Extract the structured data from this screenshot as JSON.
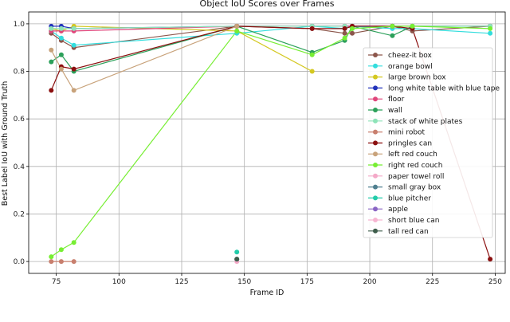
{
  "chart_data": {
    "type": "line",
    "title": "Object IoU Scores over Frames",
    "xlabel": "Frame ID",
    "ylabel": "Best Label IoU with Ground Truth",
    "xlim": [
      64,
      254
    ],
    "ylim": [
      -0.05,
      1.05
    ],
    "xticks": [
      75,
      100,
      125,
      150,
      175,
      200,
      225,
      250
    ],
    "yticks": [
      0.0,
      0.2,
      0.4,
      0.6,
      0.8,
      1.0
    ],
    "grid": true,
    "legend_position": "right",
    "series": [
      {
        "name": "cheez-it box",
        "color": "#8c564b",
        "points": [
          [
            73,
            0.96
          ],
          [
            77,
            0.93
          ],
          [
            82,
            0.9
          ],
          [
            147,
            0.99
          ],
          [
            177,
            0.98
          ],
          [
            190,
            0.96
          ],
          [
            193,
            0.96
          ],
          [
            209,
            0.99
          ],
          [
            217,
            0.97
          ],
          [
            248,
            0.99
          ]
        ]
      },
      {
        "name": "orange bowl",
        "color": "#33dddd",
        "points": [
          [
            73,
            0.97
          ],
          [
            77,
            0.94
          ],
          [
            82,
            0.91
          ],
          [
            147,
            0.96
          ],
          [
            177,
            0.99
          ],
          [
            190,
            0.98
          ],
          [
            193,
            0.99
          ],
          [
            209,
            0.98
          ],
          [
            217,
            0.98
          ],
          [
            248,
            0.96
          ]
        ]
      },
      {
        "name": "large brown box",
        "color": "#d4c820",
        "points": [
          [
            73,
            0.98
          ],
          [
            77,
            0.97
          ],
          [
            82,
            0.99
          ],
          [
            147,
            0.97
          ],
          [
            177,
            0.8
          ]
        ]
      },
      {
        "name": "long white table with blue tape",
        "color": "#2233bb",
        "points": [
          [
            73,
            0.99
          ],
          [
            77,
            0.99
          ],
          [
            82,
            0.98
          ],
          [
            147,
            0.99
          ],
          [
            177,
            0.99
          ],
          [
            190,
            0.99
          ],
          [
            193,
            0.99
          ],
          [
            209,
            0.99
          ],
          [
            217,
            0.99
          ],
          [
            248,
            0.99
          ]
        ]
      },
      {
        "name": "floor",
        "color": "#e0457b",
        "points": [
          [
            73,
            0.97
          ],
          [
            77,
            0.97
          ],
          [
            82,
            0.97
          ],
          [
            147,
            0.99
          ],
          [
            177,
            0.99
          ],
          [
            190,
            0.99
          ],
          [
            193,
            0.99
          ],
          [
            209,
            0.99
          ],
          [
            217,
            0.99
          ],
          [
            248,
            0.99
          ]
        ]
      },
      {
        "name": "wall",
        "color": "#2ca05a",
        "points": [
          [
            73,
            0.84
          ],
          [
            77,
            0.87
          ],
          [
            82,
            0.8
          ],
          [
            147,
            0.99
          ],
          [
            177,
            0.88
          ],
          [
            190,
            0.93
          ],
          [
            193,
            0.99
          ],
          [
            209,
            0.95
          ],
          [
            217,
            0.99
          ],
          [
            248,
            0.99
          ]
        ]
      },
      {
        "name": "stack of white plates",
        "color": "#8ee3b8",
        "points": [
          [
            73,
            0.98
          ],
          [
            77,
            0.98
          ],
          [
            82,
            0.98
          ],
          [
            147,
            0.99
          ],
          [
            177,
            0.99
          ],
          [
            190,
            0.99
          ],
          [
            193,
            0.98
          ],
          [
            209,
            0.99
          ],
          [
            217,
            0.99
          ],
          [
            248,
            0.99
          ]
        ]
      },
      {
        "name": "mini robot",
        "color": "#c87f6e",
        "points": [
          [
            73,
            0.0
          ],
          [
            77,
            0.0
          ],
          [
            82,
            0.0
          ]
        ]
      },
      {
        "name": "pringles can",
        "color": "#8b0f0f",
        "points": [
          [
            73,
            0.72
          ],
          [
            77,
            0.82
          ],
          [
            82,
            0.81
          ],
          [
            147,
            0.99
          ],
          [
            177,
            0.98
          ],
          [
            190,
            0.98
          ],
          [
            193,
            0.99
          ],
          [
            209,
            0.99
          ],
          [
            217,
            0.98
          ],
          [
            248,
            0.01
          ]
        ]
      },
      {
        "name": "left red couch",
        "color": "#c8a27a",
        "points": [
          [
            73,
            0.89
          ],
          [
            77,
            0.81
          ],
          [
            82,
            0.72
          ],
          [
            147,
            0.99
          ]
        ]
      },
      {
        "name": "right red couch",
        "color": "#77ee33",
        "points": [
          [
            73,
            0.02
          ],
          [
            77,
            0.05
          ],
          [
            82,
            0.08
          ],
          [
            147,
            0.97
          ],
          [
            177,
            0.87
          ],
          [
            190,
            0.94
          ],
          [
            193,
            0.98
          ],
          [
            209,
            0.99
          ],
          [
            217,
            0.99
          ],
          [
            248,
            0.98
          ]
        ]
      },
      {
        "name": "paper towel roll",
        "color": "#f4a9c8",
        "points": [
          [
            147,
            0.0
          ]
        ]
      },
      {
        "name": "small gray box",
        "color": "#4f7f8f",
        "points": [
          [
            147,
            0.01
          ]
        ]
      },
      {
        "name": "blue pitcher",
        "color": "#22ccaa",
        "points": [
          [
            147,
            0.04
          ]
        ]
      },
      {
        "name": "apple",
        "color": "#8a65c4",
        "points": []
      },
      {
        "name": "short blue can",
        "color": "#f7b6d2",
        "points": []
      },
      {
        "name": "tall red can",
        "color": "#3d5c4a",
        "points": [
          [
            147,
            0.01
          ]
        ]
      }
    ]
  }
}
